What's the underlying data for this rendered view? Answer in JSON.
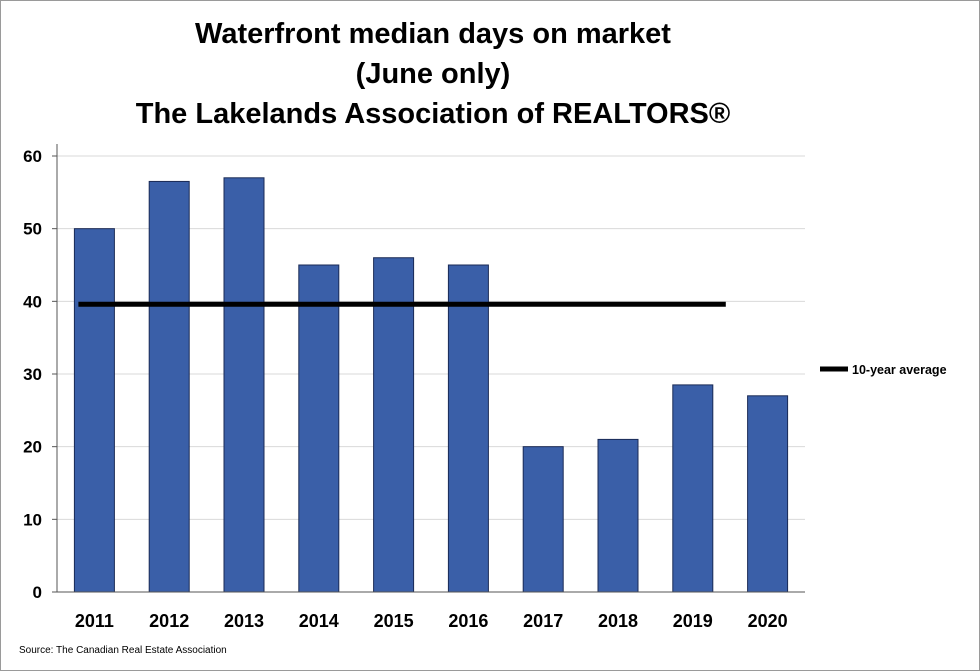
{
  "chart_data": {
    "type": "bar",
    "title_lines": [
      "Waterfront median days on market",
      "(June only)",
      "The Lakelands Association of REALTORS®"
    ],
    "categories": [
      "2011",
      "2012",
      "2013",
      "2014",
      "2015",
      "2016",
      "2017",
      "2018",
      "2019",
      "2020"
    ],
    "values": [
      50,
      56.5,
      57,
      45,
      46,
      45,
      20,
      21,
      28.5,
      27
    ],
    "bar_color": "#3a5fa8",
    "ylim": [
      0,
      60
    ],
    "yticks": [
      0,
      10,
      20,
      30,
      40,
      50,
      60
    ],
    "grid": true,
    "reference_line": {
      "name": "10-year average",
      "value": 39.6,
      "color": "#000000"
    },
    "legend_position": "right",
    "source": "Source: The Canadian Real Estate Association"
  }
}
